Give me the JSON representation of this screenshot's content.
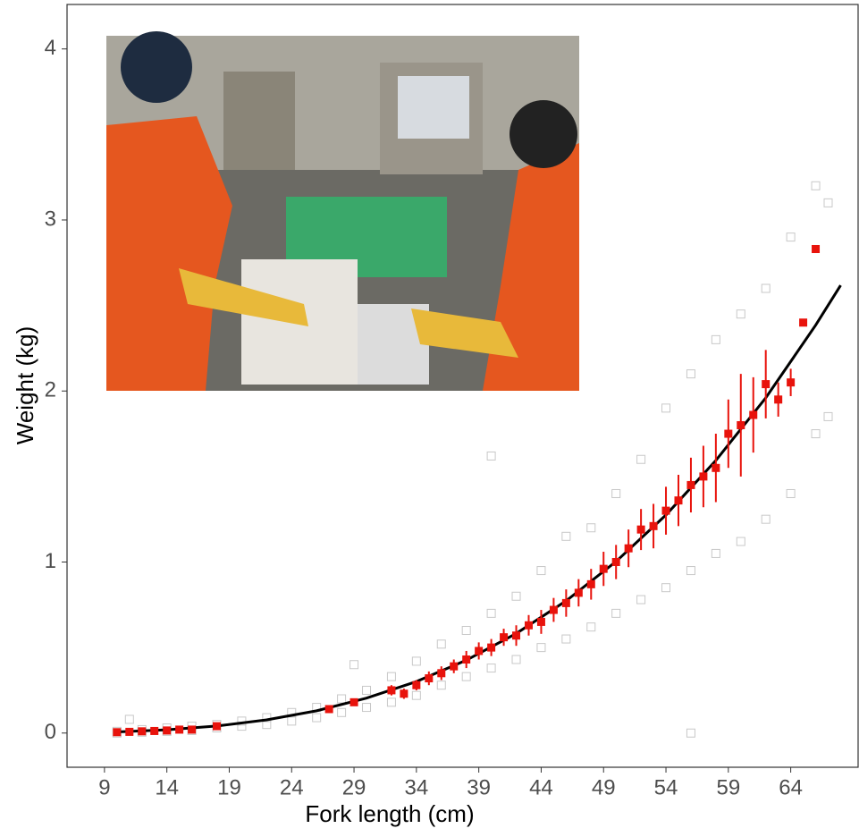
{
  "chart_data": {
    "type": "scatter",
    "x_label": "Fork length (cm)",
    "y_label": "Weight (kg)",
    "xlim": [
      6,
      69.4
    ],
    "ylim": [
      -0.2,
      4.26
    ],
    "xticks": [
      9,
      14,
      19,
      24,
      29,
      34,
      39,
      44,
      49,
      54,
      59,
      64
    ],
    "yticks": [
      0,
      1,
      2,
      3,
      4
    ],
    "series": [
      {
        "type": "scatter",
        "color": "#c8c8c8",
        "x": [
          10,
          10,
          12,
          12,
          14,
          14,
          16,
          16,
          18,
          18,
          20,
          20,
          22,
          22,
          24,
          24,
          26,
          26,
          28,
          28,
          30,
          30,
          32,
          32,
          34,
          34,
          36,
          36,
          38,
          38,
          40,
          40,
          42,
          42,
          44,
          44,
          46,
          46,
          48,
          48,
          50,
          50,
          52,
          52,
          54,
          54,
          56,
          56,
          58,
          58,
          60,
          60,
          62,
          62,
          64,
          64,
          66,
          66,
          67,
          67,
          11,
          29,
          40,
          56
        ],
        "values": [
          0,
          0.01,
          0.005,
          0.02,
          0.01,
          0.03,
          0.015,
          0.04,
          0.03,
          0.05,
          0.04,
          0.07,
          0.05,
          0.09,
          0.07,
          0.12,
          0.09,
          0.15,
          0.12,
          0.2,
          0.15,
          0.25,
          0.18,
          0.33,
          0.22,
          0.42,
          0.28,
          0.52,
          0.33,
          0.6,
          0.38,
          0.7,
          0.43,
          0.8,
          0.5,
          0.95,
          0.55,
          1.15,
          0.62,
          1.2,
          0.7,
          1.4,
          0.78,
          1.6,
          0.85,
          1.9,
          0.95,
          2.1,
          1.05,
          2.3,
          1.12,
          2.45,
          1.25,
          2.6,
          1.4,
          2.9,
          1.75,
          3.2,
          1.85,
          3.1,
          0.08,
          0.4,
          1.62,
          0
        ]
      },
      {
        "type": "errorbar",
        "color": "#e8130c",
        "x": [
          10,
          11,
          12,
          13,
          14,
          15,
          16,
          18,
          27,
          29,
          32,
          33,
          34,
          35,
          36,
          37,
          38,
          39,
          40,
          41,
          42,
          43,
          44,
          45,
          46,
          47,
          48,
          49,
          50,
          51,
          52,
          53,
          54,
          55,
          56,
          57,
          58,
          59,
          60,
          61,
          62,
          63,
          64,
          65,
          66
        ],
        "values": [
          0.005,
          0.007,
          0.01,
          0.012,
          0.015,
          0.02,
          0.02,
          0.04,
          0.14,
          0.18,
          0.25,
          0.23,
          0.28,
          0.32,
          0.35,
          0.39,
          0.43,
          0.48,
          0.5,
          0.56,
          0.57,
          0.63,
          0.65,
          0.72,
          0.76,
          0.82,
          0.87,
          0.96,
          1.0,
          1.08,
          1.19,
          1.21,
          1.3,
          1.36,
          1.45,
          1.5,
          1.55,
          1.75,
          1.8,
          1.86,
          2.04,
          1.95,
          2.05,
          2.4,
          2.83
        ],
        "errors": [
          0,
          0,
          0,
          0,
          0,
          0,
          0,
          0,
          0.01,
          0.02,
          0.03,
          0.03,
          0.03,
          0.04,
          0.04,
          0.04,
          0.05,
          0.05,
          0.05,
          0.05,
          0.06,
          0.06,
          0.07,
          0.07,
          0.08,
          0.08,
          0.09,
          0.1,
          0.1,
          0.11,
          0.12,
          0.13,
          0.14,
          0.15,
          0.16,
          0.18,
          0.2,
          0.2,
          0.3,
          0.22,
          0.2,
          0.1,
          0.08,
          0,
          0
        ]
      },
      {
        "type": "line",
        "color": "#000000",
        "x": [
          10,
          14,
          18,
          22,
          26,
          30,
          34,
          38,
          42,
          46,
          50,
          54,
          58,
          62,
          66,
          68
        ],
        "values": [
          0.0066,
          0.019,
          0.041,
          0.077,
          0.13,
          0.204,
          0.301,
          0.426,
          0.582,
          0.773,
          1.003,
          1.275,
          1.594,
          1.96,
          2.385,
          2.618
        ]
      }
    ]
  }
}
